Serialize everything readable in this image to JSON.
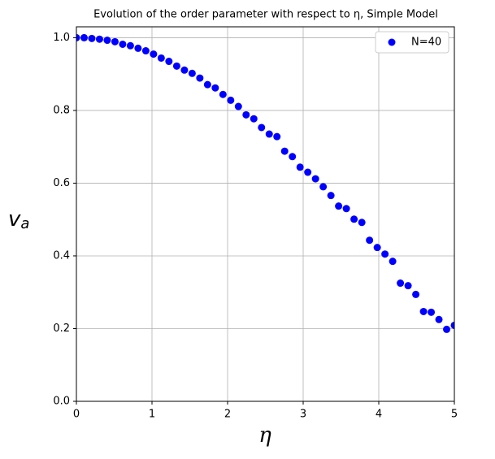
{
  "chart_data": {
    "type": "scatter",
    "title": "Evolution of the order parameter with respect to η, Simple Model",
    "x_label": "η",
    "y_label": {
      "main": "v",
      "sub": "a"
    },
    "series": [
      {
        "name": "N=40",
        "color": "#0000ff",
        "x": [
          0,
          0.102,
          0.204,
          0.306,
          0.408,
          0.51,
          0.612,
          0.714,
          0.816,
          0.918,
          1.02,
          1.122,
          1.224,
          1.327,
          1.429,
          1.531,
          1.633,
          1.735,
          1.837,
          1.939,
          2.041,
          2.143,
          2.245,
          2.347,
          2.449,
          2.551,
          2.653,
          2.755,
          2.857,
          2.959,
          3.061,
          3.163,
          3.265,
          3.367,
          3.469,
          3.571,
          3.673,
          3.776,
          3.878,
          3.98,
          4.082,
          4.184,
          4.286,
          4.388,
          4.49,
          4.592,
          4.694,
          4.796,
          4.898,
          5
        ],
        "values": [
          1.0,
          1.0,
          0.998,
          0.996,
          0.993,
          0.989,
          0.982,
          0.978,
          0.971,
          0.964,
          0.955,
          0.944,
          0.935,
          0.922,
          0.911,
          0.902,
          0.889,
          0.871,
          0.862,
          0.844,
          0.828,
          0.811,
          0.788,
          0.777,
          0.753,
          0.735,
          0.728,
          0.688,
          0.673,
          0.644,
          0.63,
          0.612,
          0.59,
          0.566,
          0.537,
          0.53,
          0.501,
          0.492,
          0.443,
          0.423,
          0.405,
          0.385,
          0.325,
          0.318,
          0.294,
          0.247,
          0.245,
          0.225,
          0.198,
          0.209
        ]
      }
    ],
    "xlim": [
      0,
      5
    ],
    "xticks": [
      0,
      1,
      2,
      3,
      4,
      5
    ],
    "ylim": [
      0,
      1.03
    ],
    "yticks": [
      {
        "value": 0,
        "label": "0.0"
      },
      0.2,
      0.4,
      0.6,
      0.8,
      {
        "value": 1,
        "label": "1.0"
      }
    ],
    "grid": true,
    "legend": "upper right"
  }
}
